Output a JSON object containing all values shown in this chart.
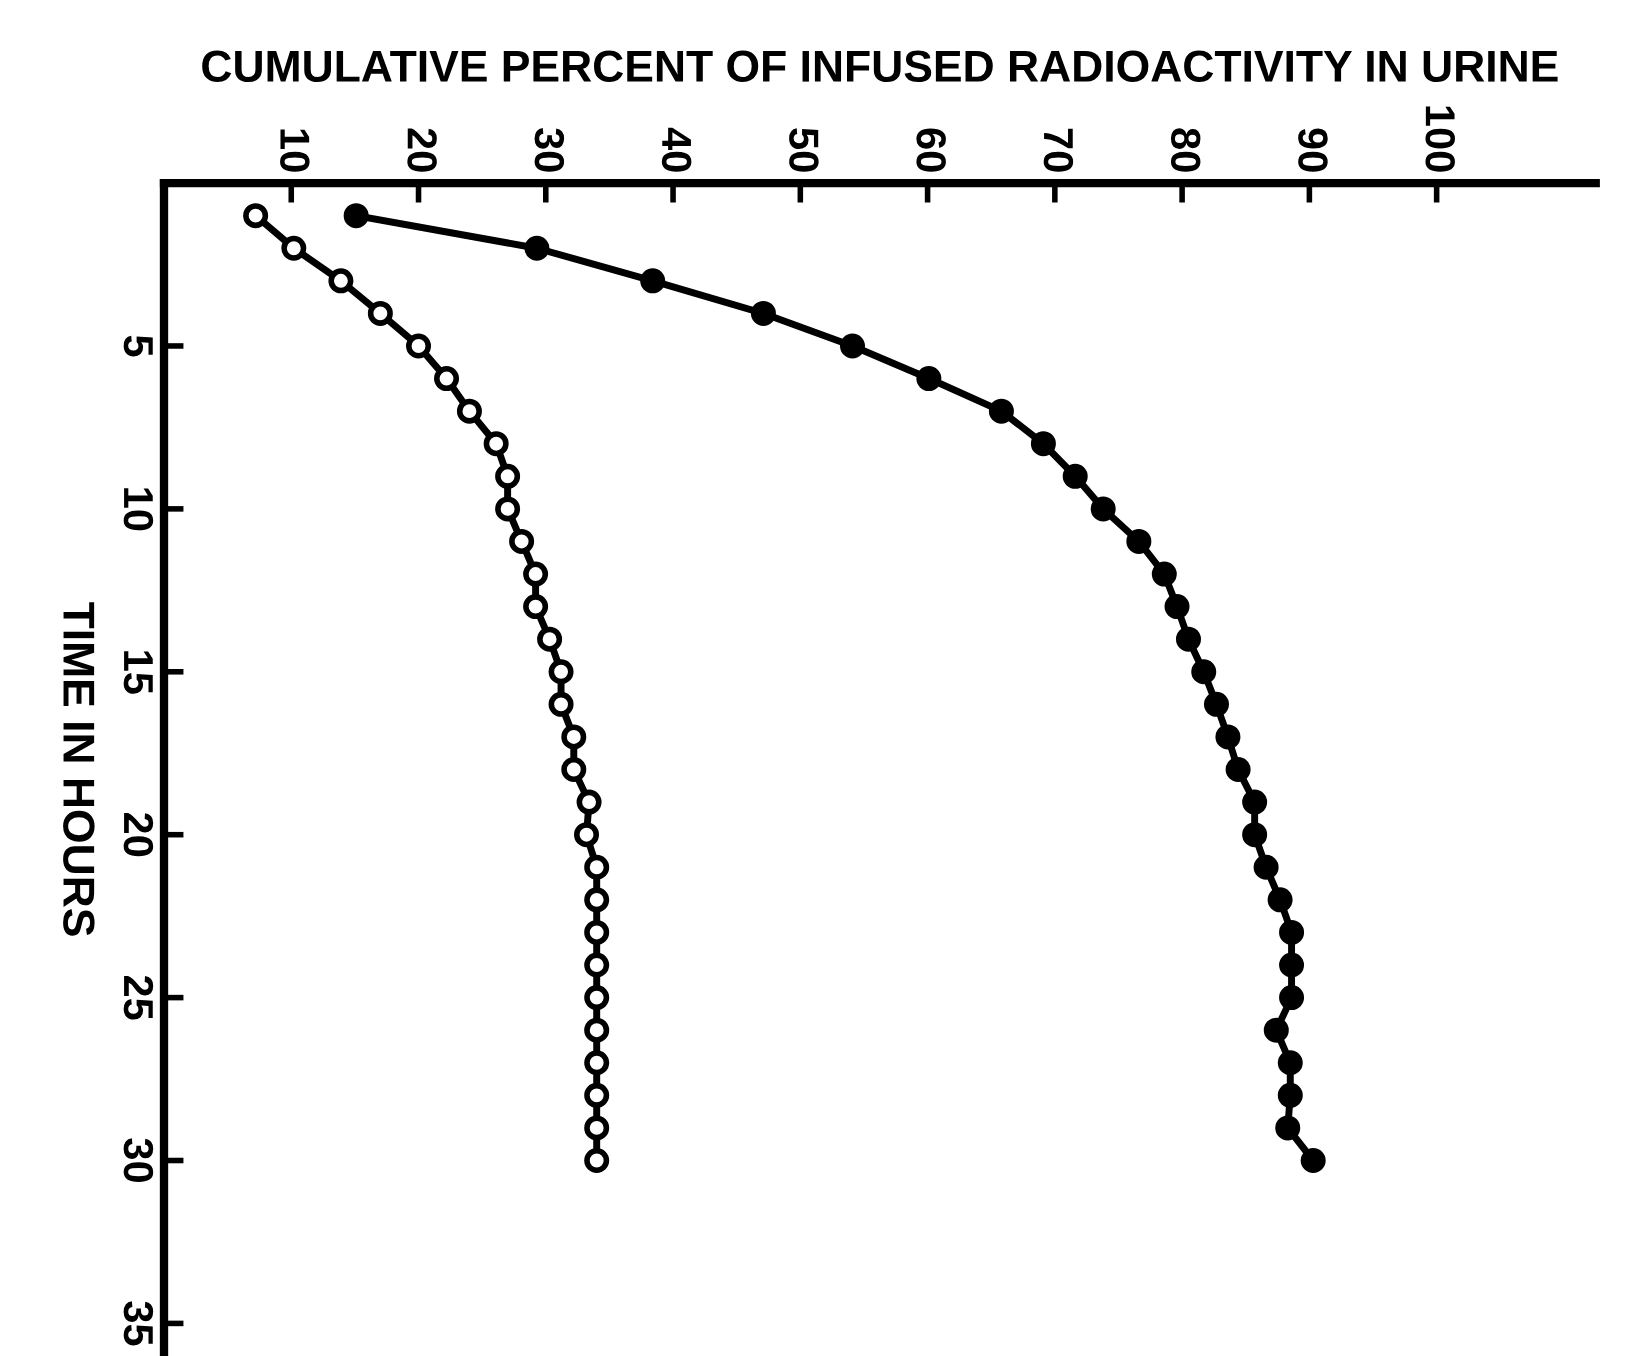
{
  "chart_data": {
    "type": "line",
    "xlabel": "CUMULATIVE PERCENT OF INFUSED RADIOACTIVITY IN URINE",
    "ylabel": "TIME IN HOURS",
    "xlim": [
      0,
      112.5
    ],
    "xticks": [
      10,
      20,
      30,
      40,
      50,
      60,
      70,
      80,
      90,
      100
    ],
    "ylim": [
      36,
      0
    ],
    "yticks": [
      5,
      10,
      15,
      20,
      25,
      30,
      35
    ],
    "marker": "circle",
    "line_style": "solid",
    "grid": false,
    "series": [
      {
        "color": "#000000",
        "x": [
          7.2,
          10.2,
          13.9,
          17,
          20,
          22.2,
          24,
          26.1,
          27,
          27,
          28.1,
          29.2,
          29.2,
          30.3,
          31.2,
          31.2,
          32.2,
          32.2,
          33.4,
          33.2,
          34,
          34,
          34,
          34,
          34,
          34,
          34,
          34,
          34,
          34
        ],
        "values": [
          1,
          2,
          3,
          4,
          5,
          6,
          7,
          8,
          9,
          10,
          11,
          12,
          13,
          14,
          15,
          16,
          17,
          18,
          19,
          20,
          21,
          22,
          23,
          24,
          25,
          26,
          27,
          28,
          29,
          30
        ]
      },
      {
        "color": "#000000",
        "x": [
          15.1,
          29.3,
          38.4,
          47.1,
          54.1,
          60.1,
          65.8,
          69.1,
          71.6,
          73.8,
          76.6,
          78.6,
          79.6,
          80.5,
          81.7,
          82.7,
          83.6,
          84.4,
          85.7,
          85.7,
          86.6,
          87.7,
          88.6,
          88.6,
          88.6,
          87.4,
          88.5,
          88.5,
          88.3,
          90.3
        ],
        "values": [
          1,
          2,
          3,
          4,
          5,
          6,
          7,
          8,
          9,
          10,
          11,
          12,
          13,
          14,
          15,
          16,
          17,
          18,
          19,
          20,
          21,
          22,
          23,
          24,
          25,
          26,
          27,
          28,
          29,
          30
        ]
      }
    ]
  }
}
